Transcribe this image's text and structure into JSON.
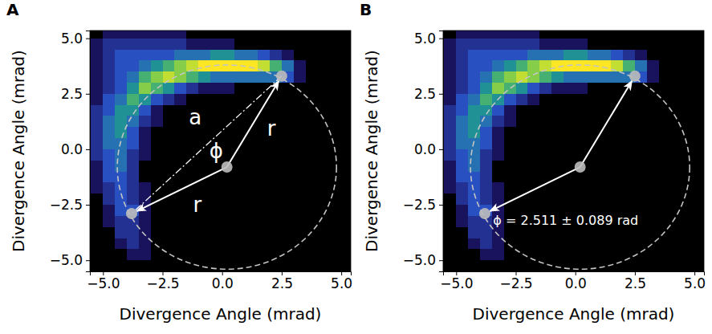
{
  "chart_data": [
    {
      "type": "heatmap",
      "panel_label": "A",
      "x_label": "Divergence Angle (mrad)",
      "y_label": "Divergence Angle (mrad)",
      "xlim": [
        -5.55,
        5.4
      ],
      "ylim": [
        -5.5,
        5.35
      ],
      "xticks": [
        {
          "value": -5,
          "label": "−5.0"
        },
        {
          "value": -2.5,
          "label": "−2.5"
        },
        {
          "value": 0,
          "label": "0.0"
        },
        {
          "value": 2.5,
          "label": "2.5"
        },
        {
          "value": 5,
          "label": "5.0"
        }
      ],
      "yticks": [
        {
          "value": -5,
          "label": "−5.0"
        },
        {
          "value": -2.5,
          "label": "−2.5"
        },
        {
          "value": 0,
          "label": "0.0"
        },
        {
          "value": 2.5,
          "label": "2.5"
        },
        {
          "value": 5,
          "label": "5.0"
        }
      ],
      "x": [
        -5.25,
        -4.75,
        -4.25,
        -3.75,
        -3.25,
        -2.75,
        -2.25,
        -1.75,
        -1.25,
        -0.75,
        -0.25,
        0.25,
        0.75,
        1.25,
        1.75,
        2.25,
        2.75,
        3.25,
        3.75,
        4.25,
        4.75,
        5.25
      ],
      "y": [
        5.25,
        4.75,
        4.25,
        3.75,
        3.25,
        2.75,
        2.25,
        1.75,
        1.25,
        0.75,
        0.25,
        -0.25,
        -0.75,
        -1.25,
        -1.75,
        -2.25,
        -2.75,
        -3.25,
        -3.75,
        -4.25,
        -4.75,
        -5.25
      ],
      "z": [
        [
          0,
          1,
          1,
          1,
          1,
          1,
          1,
          1,
          0,
          0,
          0,
          0,
          0,
          0,
          0,
          0,
          0,
          0,
          0,
          0,
          0,
          0
        ],
        [
          1,
          2,
          2,
          2,
          2,
          2,
          2,
          2,
          1,
          1,
          1,
          1,
          0,
          0,
          0,
          0,
          0,
          0,
          0,
          0,
          0,
          0
        ],
        [
          1,
          2,
          3,
          3,
          3,
          3,
          3,
          4,
          4,
          4,
          5,
          5,
          4,
          4,
          3,
          2,
          1,
          0,
          0,
          0,
          0,
          0
        ],
        [
          1,
          2,
          3,
          3,
          4,
          5,
          6,
          7,
          8,
          9,
          9,
          9,
          9,
          9,
          8,
          6,
          4,
          1,
          0,
          0,
          0,
          0
        ],
        [
          1,
          2,
          3,
          4,
          6,
          7,
          8,
          7,
          6,
          5,
          4,
          4,
          4,
          4,
          4,
          4,
          3,
          1,
          0,
          0,
          0,
          0
        ],
        [
          1,
          2,
          3,
          5,
          7,
          6,
          5,
          3,
          2,
          1,
          1,
          1,
          0,
          0,
          0,
          0,
          0,
          0,
          0,
          0,
          0,
          0
        ],
        [
          1,
          3,
          4,
          6,
          5,
          3,
          2,
          1,
          0,
          0,
          0,
          0,
          0,
          0,
          0,
          0,
          0,
          0,
          0,
          0,
          0,
          0
        ],
        [
          2,
          3,
          5,
          5,
          3,
          1,
          0,
          0,
          0,
          0,
          0,
          0,
          0,
          0,
          0,
          0,
          0,
          0,
          0,
          0,
          0,
          0
        ],
        [
          2,
          4,
          5,
          4,
          2,
          1,
          0,
          0,
          0,
          0,
          0,
          0,
          0,
          0,
          0,
          0,
          0,
          0,
          0,
          0,
          0,
          0
        ],
        [
          2,
          4,
          5,
          3,
          1,
          0,
          0,
          0,
          0,
          0,
          0,
          0,
          0,
          0,
          0,
          0,
          0,
          0,
          0,
          0,
          0,
          0
        ],
        [
          2,
          4,
          4,
          3,
          1,
          0,
          0,
          0,
          0,
          0,
          0,
          0,
          0,
          0,
          0,
          0,
          0,
          0,
          0,
          0,
          0,
          0
        ],
        [
          2,
          3,
          4,
          2,
          1,
          0,
          0,
          0,
          0,
          0,
          0,
          0,
          0,
          0,
          0,
          0,
          0,
          0,
          0,
          0,
          0,
          0
        ],
        [
          1,
          3,
          4,
          2,
          0,
          0,
          0,
          0,
          0,
          0,
          0,
          0,
          0,
          0,
          0,
          0,
          0,
          0,
          0,
          0,
          0,
          0
        ],
        [
          1,
          3,
          3,
          2,
          0,
          0,
          0,
          0,
          0,
          0,
          0,
          0,
          0,
          0,
          0,
          0,
          0,
          0,
          0,
          0,
          0,
          0
        ],
        [
          1,
          2,
          3,
          2,
          1,
          0,
          0,
          0,
          0,
          0,
          0,
          0,
          0,
          0,
          0,
          0,
          0,
          0,
          0,
          0,
          0,
          0
        ],
        [
          0,
          2,
          3,
          2,
          1,
          0,
          0,
          0,
          0,
          0,
          0,
          0,
          0,
          0,
          0,
          0,
          0,
          0,
          0,
          0,
          0,
          0
        ],
        [
          0,
          1,
          3,
          3,
          1,
          0,
          0,
          0,
          0,
          0,
          0,
          0,
          0,
          0,
          0,
          0,
          0,
          0,
          0,
          0,
          0,
          0
        ],
        [
          0,
          1,
          2,
          2,
          1,
          0,
          0,
          0,
          0,
          0,
          0,
          0,
          0,
          0,
          0,
          0,
          0,
          0,
          0,
          0,
          0,
          0
        ],
        [
          0,
          0,
          2,
          2,
          1,
          0,
          0,
          0,
          0,
          0,
          0,
          0,
          0,
          0,
          0,
          0,
          0,
          0,
          0,
          0,
          0,
          0
        ],
        [
          0,
          0,
          1,
          2,
          1,
          0,
          0,
          0,
          0,
          0,
          0,
          0,
          0,
          0,
          0,
          0,
          0,
          0,
          0,
          0,
          0,
          0
        ],
        [
          0,
          0,
          0,
          1,
          1,
          0,
          0,
          0,
          0,
          0,
          0,
          0,
          0,
          0,
          0,
          0,
          0,
          0,
          0,
          0,
          0,
          0
        ],
        [
          0,
          0,
          0,
          0,
          0,
          0,
          0,
          0,
          0,
          0,
          0,
          0,
          0,
          0,
          0,
          0,
          0,
          0,
          0,
          0,
          0,
          0
        ]
      ],
      "circle": {
        "x": 0.2,
        "y": -0.8,
        "r": 4.6,
        "line_style": "dashed"
      },
      "points": {
        "x": [
          2.5,
          -3.8
        ],
        "y": [
          3.3,
          -2.9
        ]
      },
      "chord": {
        "x": [
          2.5,
          -3.8
        ],
        "y": [
          3.3,
          -2.9
        ],
        "line_style": "dashdot"
      },
      "annotations": [
        {
          "text": "a",
          "x": -1.13,
          "y": 1.38
        },
        {
          "text": "ϕ",
          "x": -0.25,
          "y": -0.13
        },
        {
          "text": "r",
          "x": 2.07,
          "y": 0.88
        },
        {
          "text": "r",
          "x": -1.04,
          "y": -2.56
        }
      ]
    },
    {
      "type": "heatmap",
      "panel_label": "B",
      "x_label": "Divergence Angle (mrad)",
      "y_label": "Divergence Angle (mrad)",
      "xlim": [
        -5.55,
        5.4
      ],
      "ylim": [
        -5.5,
        5.35
      ],
      "xticks": [
        {
          "value": -5,
          "label": "−5.0"
        },
        {
          "value": -2.5,
          "label": "−2.5"
        },
        {
          "value": 0,
          "label": "0.0"
        },
        {
          "value": 2.5,
          "label": "2.5"
        },
        {
          "value": 5,
          "label": "5.0"
        }
      ],
      "yticks": [
        {
          "value": -5,
          "label": "−5.0"
        },
        {
          "value": -2.5,
          "label": "−2.5"
        },
        {
          "value": 0,
          "label": "0.0"
        },
        {
          "value": 2.5,
          "label": "2.5"
        },
        {
          "value": 5,
          "label": "5.0"
        }
      ],
      "x": [
        -5.25,
        -4.75,
        -4.25,
        -3.75,
        -3.25,
        -2.75,
        -2.25,
        -1.75,
        -1.25,
        -0.75,
        -0.25,
        0.25,
        0.75,
        1.25,
        1.75,
        2.25,
        2.75,
        3.25,
        3.75,
        4.25,
        4.75,
        5.25
      ],
      "y": [
        5.25,
        4.75,
        4.25,
        3.75,
        3.25,
        2.75,
        2.25,
        1.75,
        1.25,
        0.75,
        0.25,
        -0.25,
        -0.75,
        -1.25,
        -1.75,
        -2.25,
        -2.75,
        -3.25,
        -3.75,
        -4.25,
        -4.75,
        -5.25
      ],
      "z": [
        [
          0,
          1,
          1,
          1,
          1,
          1,
          1,
          1,
          0,
          0,
          0,
          0,
          0,
          0,
          0,
          0,
          0,
          0,
          0,
          0,
          0,
          0
        ],
        [
          1,
          2,
          2,
          2,
          2,
          2,
          2,
          2,
          1,
          1,
          1,
          1,
          0,
          0,
          0,
          0,
          0,
          0,
          0,
          0,
          0,
          0
        ],
        [
          1,
          2,
          3,
          3,
          3,
          3,
          3,
          4,
          4,
          4,
          5,
          5,
          4,
          4,
          3,
          2,
          1,
          0,
          0,
          0,
          0,
          0
        ],
        [
          1,
          2,
          3,
          3,
          4,
          5,
          6,
          7,
          8,
          9,
          9,
          9,
          9,
          9,
          8,
          6,
          4,
          1,
          0,
          0,
          0,
          0
        ],
        [
          1,
          2,
          3,
          4,
          6,
          7,
          8,
          7,
          6,
          5,
          4,
          4,
          4,
          4,
          4,
          4,
          3,
          1,
          0,
          0,
          0,
          0
        ],
        [
          1,
          2,
          3,
          5,
          7,
          6,
          5,
          3,
          2,
          1,
          1,
          1,
          0,
          0,
          0,
          0,
          0,
          0,
          0,
          0,
          0,
          0
        ],
        [
          1,
          3,
          4,
          6,
          5,
          3,
          2,
          1,
          0,
          0,
          0,
          0,
          0,
          0,
          0,
          0,
          0,
          0,
          0,
          0,
          0,
          0
        ],
        [
          2,
          3,
          5,
          5,
          3,
          1,
          0,
          0,
          0,
          0,
          0,
          0,
          0,
          0,
          0,
          0,
          0,
          0,
          0,
          0,
          0,
          0
        ],
        [
          2,
          4,
          5,
          4,
          2,
          1,
          0,
          0,
          0,
          0,
          0,
          0,
          0,
          0,
          0,
          0,
          0,
          0,
          0,
          0,
          0,
          0
        ],
        [
          2,
          4,
          5,
          3,
          1,
          0,
          0,
          0,
          0,
          0,
          0,
          0,
          0,
          0,
          0,
          0,
          0,
          0,
          0,
          0,
          0,
          0
        ],
        [
          2,
          4,
          4,
          3,
          1,
          0,
          0,
          0,
          0,
          0,
          0,
          0,
          0,
          0,
          0,
          0,
          0,
          0,
          0,
          0,
          0,
          0
        ],
        [
          2,
          3,
          4,
          2,
          1,
          0,
          0,
          0,
          0,
          0,
          0,
          0,
          0,
          0,
          0,
          0,
          0,
          0,
          0,
          0,
          0,
          0
        ],
        [
          1,
          3,
          4,
          2,
          0,
          0,
          0,
          0,
          0,
          0,
          0,
          0,
          0,
          0,
          0,
          0,
          0,
          0,
          0,
          0,
          0,
          0
        ],
        [
          1,
          3,
          3,
          2,
          0,
          0,
          0,
          0,
          0,
          0,
          0,
          0,
          0,
          0,
          0,
          0,
          0,
          0,
          0,
          0,
          0,
          0
        ],
        [
          1,
          2,
          3,
          2,
          1,
          0,
          0,
          0,
          0,
          0,
          0,
          0,
          0,
          0,
          0,
          0,
          0,
          0,
          0,
          0,
          0,
          0
        ],
        [
          0,
          2,
          3,
          2,
          1,
          0,
          0,
          0,
          0,
          0,
          0,
          0,
          0,
          0,
          0,
          0,
          0,
          0,
          0,
          0,
          0,
          0
        ],
        [
          0,
          1,
          3,
          3,
          1,
          0,
          0,
          0,
          0,
          0,
          0,
          0,
          0,
          0,
          0,
          0,
          0,
          0,
          0,
          0,
          0,
          0
        ],
        [
          0,
          1,
          2,
          2,
          1,
          0,
          0,
          0,
          0,
          0,
          0,
          0,
          0,
          0,
          0,
          0,
          0,
          0,
          0,
          0,
          0,
          0
        ],
        [
          0,
          0,
          2,
          2,
          1,
          0,
          0,
          0,
          0,
          0,
          0,
          0,
          0,
          0,
          0,
          0,
          0,
          0,
          0,
          0,
          0,
          0
        ],
        [
          0,
          0,
          1,
          2,
          1,
          0,
          0,
          0,
          0,
          0,
          0,
          0,
          0,
          0,
          0,
          0,
          0,
          0,
          0,
          0,
          0,
          0
        ],
        [
          0,
          0,
          0,
          1,
          1,
          0,
          0,
          0,
          0,
          0,
          0,
          0,
          0,
          0,
          0,
          0,
          0,
          0,
          0,
          0,
          0,
          0
        ],
        [
          0,
          0,
          0,
          0,
          0,
          0,
          0,
          0,
          0,
          0,
          0,
          0,
          0,
          0,
          0,
          0,
          0,
          0,
          0,
          0,
          0,
          0
        ]
      ],
      "circle": {
        "x": 0.2,
        "y": -0.8,
        "r": 4.6,
        "line_style": "dashed"
      },
      "points": {
        "x": [
          2.5,
          -3.8
        ],
        "y": [
          3.3,
          -2.9
        ]
      },
      "annotations": [
        {
          "text": "ϕ = 2.511 ± 0.089 rad",
          "x": -3.45,
          "y": -3.25
        }
      ]
    }
  ]
}
